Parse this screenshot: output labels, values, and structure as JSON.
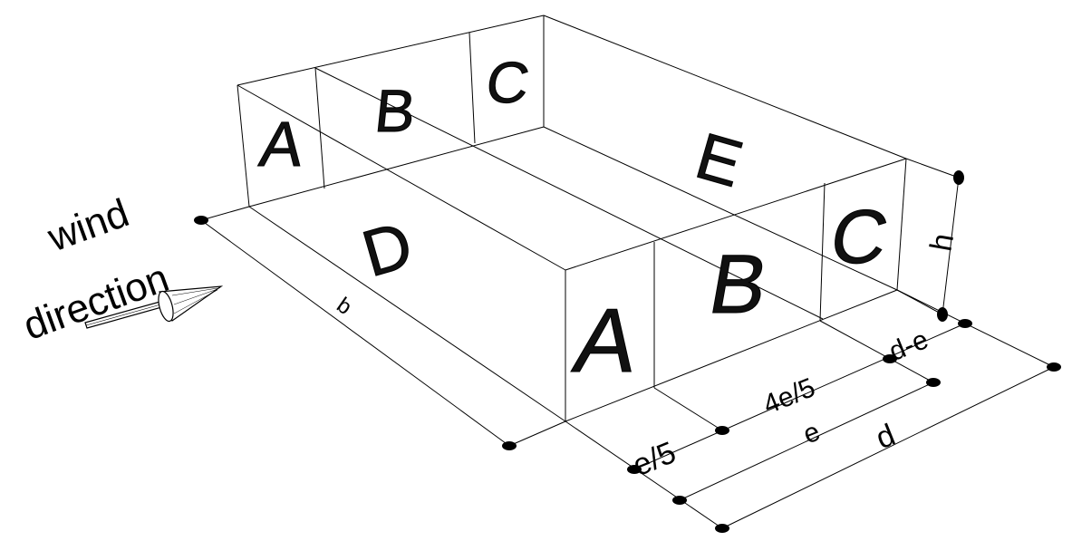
{
  "wind": {
    "line1": "wind",
    "line2": "direction"
  },
  "zones": {
    "back_a": "A",
    "back_b": "B",
    "back_c": "C",
    "front_a": "A",
    "front_b": "B",
    "front_c": "C",
    "windward": "D",
    "leeward": "E"
  },
  "dimensions": {
    "b": "b",
    "h": "h",
    "d_minus_e": "d-e",
    "four_e_over_5": "4e/5",
    "e_over_5": "e/5",
    "e": "e",
    "d": "d"
  },
  "colors": {
    "ink": "#000000",
    "background": "#ffffff"
  },
  "icons": {
    "wind_arrow": "arrow-icon"
  }
}
